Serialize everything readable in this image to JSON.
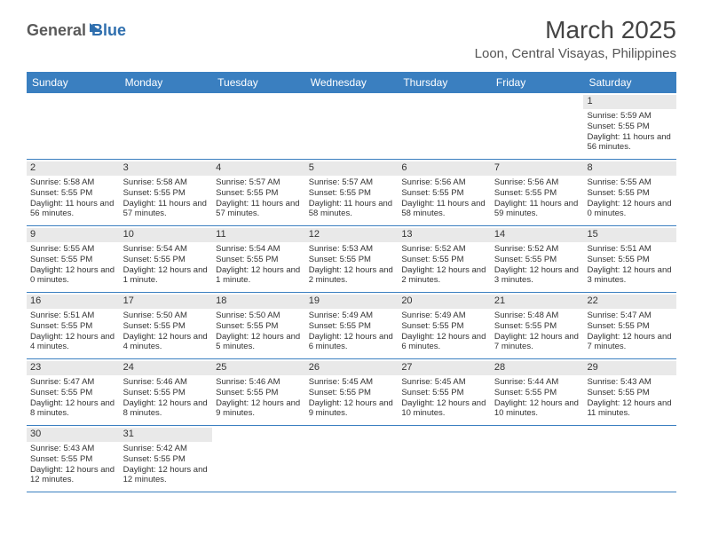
{
  "brand": {
    "general": "General",
    "blue": "Blue"
  },
  "title": "March 2025",
  "location": "Loon, Central Visayas, Philippines",
  "colors": {
    "header_bg": "#3a7fc0",
    "header_fg": "#ffffff",
    "daynum_bg": "#e9e9e9",
    "border": "#3a7fc0",
    "title_color": "#444444",
    "text_color": "#333333",
    "logo_gray": "#5a5a5a",
    "logo_blue": "#2f6fae",
    "background": "#ffffff"
  },
  "typography": {
    "title_fontsize": 28,
    "location_fontsize": 15,
    "dayheader_fontsize": 12,
    "cell_fontsize": 9.5,
    "font_family": "Arial"
  },
  "weekdays": [
    "Sunday",
    "Monday",
    "Tuesday",
    "Wednesday",
    "Thursday",
    "Friday",
    "Saturday"
  ],
  "weeks": [
    [
      null,
      null,
      null,
      null,
      null,
      null,
      {
        "n": "1",
        "sr": "Sunrise: 5:59 AM",
        "ss": "Sunset: 5:55 PM",
        "dl": "Daylight: 11 hours and 56 minutes."
      }
    ],
    [
      {
        "n": "2",
        "sr": "Sunrise: 5:58 AM",
        "ss": "Sunset: 5:55 PM",
        "dl": "Daylight: 11 hours and 56 minutes."
      },
      {
        "n": "3",
        "sr": "Sunrise: 5:58 AM",
        "ss": "Sunset: 5:55 PM",
        "dl": "Daylight: 11 hours and 57 minutes."
      },
      {
        "n": "4",
        "sr": "Sunrise: 5:57 AM",
        "ss": "Sunset: 5:55 PM",
        "dl": "Daylight: 11 hours and 57 minutes."
      },
      {
        "n": "5",
        "sr": "Sunrise: 5:57 AM",
        "ss": "Sunset: 5:55 PM",
        "dl": "Daylight: 11 hours and 58 minutes."
      },
      {
        "n": "6",
        "sr": "Sunrise: 5:56 AM",
        "ss": "Sunset: 5:55 PM",
        "dl": "Daylight: 11 hours and 58 minutes."
      },
      {
        "n": "7",
        "sr": "Sunrise: 5:56 AM",
        "ss": "Sunset: 5:55 PM",
        "dl": "Daylight: 11 hours and 59 minutes."
      },
      {
        "n": "8",
        "sr": "Sunrise: 5:55 AM",
        "ss": "Sunset: 5:55 PM",
        "dl": "Daylight: 12 hours and 0 minutes."
      }
    ],
    [
      {
        "n": "9",
        "sr": "Sunrise: 5:55 AM",
        "ss": "Sunset: 5:55 PM",
        "dl": "Daylight: 12 hours and 0 minutes."
      },
      {
        "n": "10",
        "sr": "Sunrise: 5:54 AM",
        "ss": "Sunset: 5:55 PM",
        "dl": "Daylight: 12 hours and 1 minute."
      },
      {
        "n": "11",
        "sr": "Sunrise: 5:54 AM",
        "ss": "Sunset: 5:55 PM",
        "dl": "Daylight: 12 hours and 1 minute."
      },
      {
        "n": "12",
        "sr": "Sunrise: 5:53 AM",
        "ss": "Sunset: 5:55 PM",
        "dl": "Daylight: 12 hours and 2 minutes."
      },
      {
        "n": "13",
        "sr": "Sunrise: 5:52 AM",
        "ss": "Sunset: 5:55 PM",
        "dl": "Daylight: 12 hours and 2 minutes."
      },
      {
        "n": "14",
        "sr": "Sunrise: 5:52 AM",
        "ss": "Sunset: 5:55 PM",
        "dl": "Daylight: 12 hours and 3 minutes."
      },
      {
        "n": "15",
        "sr": "Sunrise: 5:51 AM",
        "ss": "Sunset: 5:55 PM",
        "dl": "Daylight: 12 hours and 3 minutes."
      }
    ],
    [
      {
        "n": "16",
        "sr": "Sunrise: 5:51 AM",
        "ss": "Sunset: 5:55 PM",
        "dl": "Daylight: 12 hours and 4 minutes."
      },
      {
        "n": "17",
        "sr": "Sunrise: 5:50 AM",
        "ss": "Sunset: 5:55 PM",
        "dl": "Daylight: 12 hours and 4 minutes."
      },
      {
        "n": "18",
        "sr": "Sunrise: 5:50 AM",
        "ss": "Sunset: 5:55 PM",
        "dl": "Daylight: 12 hours and 5 minutes."
      },
      {
        "n": "19",
        "sr": "Sunrise: 5:49 AM",
        "ss": "Sunset: 5:55 PM",
        "dl": "Daylight: 12 hours and 6 minutes."
      },
      {
        "n": "20",
        "sr": "Sunrise: 5:49 AM",
        "ss": "Sunset: 5:55 PM",
        "dl": "Daylight: 12 hours and 6 minutes."
      },
      {
        "n": "21",
        "sr": "Sunrise: 5:48 AM",
        "ss": "Sunset: 5:55 PM",
        "dl": "Daylight: 12 hours and 7 minutes."
      },
      {
        "n": "22",
        "sr": "Sunrise: 5:47 AM",
        "ss": "Sunset: 5:55 PM",
        "dl": "Daylight: 12 hours and 7 minutes."
      }
    ],
    [
      {
        "n": "23",
        "sr": "Sunrise: 5:47 AM",
        "ss": "Sunset: 5:55 PM",
        "dl": "Daylight: 12 hours and 8 minutes."
      },
      {
        "n": "24",
        "sr": "Sunrise: 5:46 AM",
        "ss": "Sunset: 5:55 PM",
        "dl": "Daylight: 12 hours and 8 minutes."
      },
      {
        "n": "25",
        "sr": "Sunrise: 5:46 AM",
        "ss": "Sunset: 5:55 PM",
        "dl": "Daylight: 12 hours and 9 minutes."
      },
      {
        "n": "26",
        "sr": "Sunrise: 5:45 AM",
        "ss": "Sunset: 5:55 PM",
        "dl": "Daylight: 12 hours and 9 minutes."
      },
      {
        "n": "27",
        "sr": "Sunrise: 5:45 AM",
        "ss": "Sunset: 5:55 PM",
        "dl": "Daylight: 12 hours and 10 minutes."
      },
      {
        "n": "28",
        "sr": "Sunrise: 5:44 AM",
        "ss": "Sunset: 5:55 PM",
        "dl": "Daylight: 12 hours and 10 minutes."
      },
      {
        "n": "29",
        "sr": "Sunrise: 5:43 AM",
        "ss": "Sunset: 5:55 PM",
        "dl": "Daylight: 12 hours and 11 minutes."
      }
    ],
    [
      {
        "n": "30",
        "sr": "Sunrise: 5:43 AM",
        "ss": "Sunset: 5:55 PM",
        "dl": "Daylight: 12 hours and 12 minutes."
      },
      {
        "n": "31",
        "sr": "Sunrise: 5:42 AM",
        "ss": "Sunset: 5:55 PM",
        "dl": "Daylight: 12 hours and 12 minutes."
      },
      null,
      null,
      null,
      null,
      null
    ]
  ]
}
